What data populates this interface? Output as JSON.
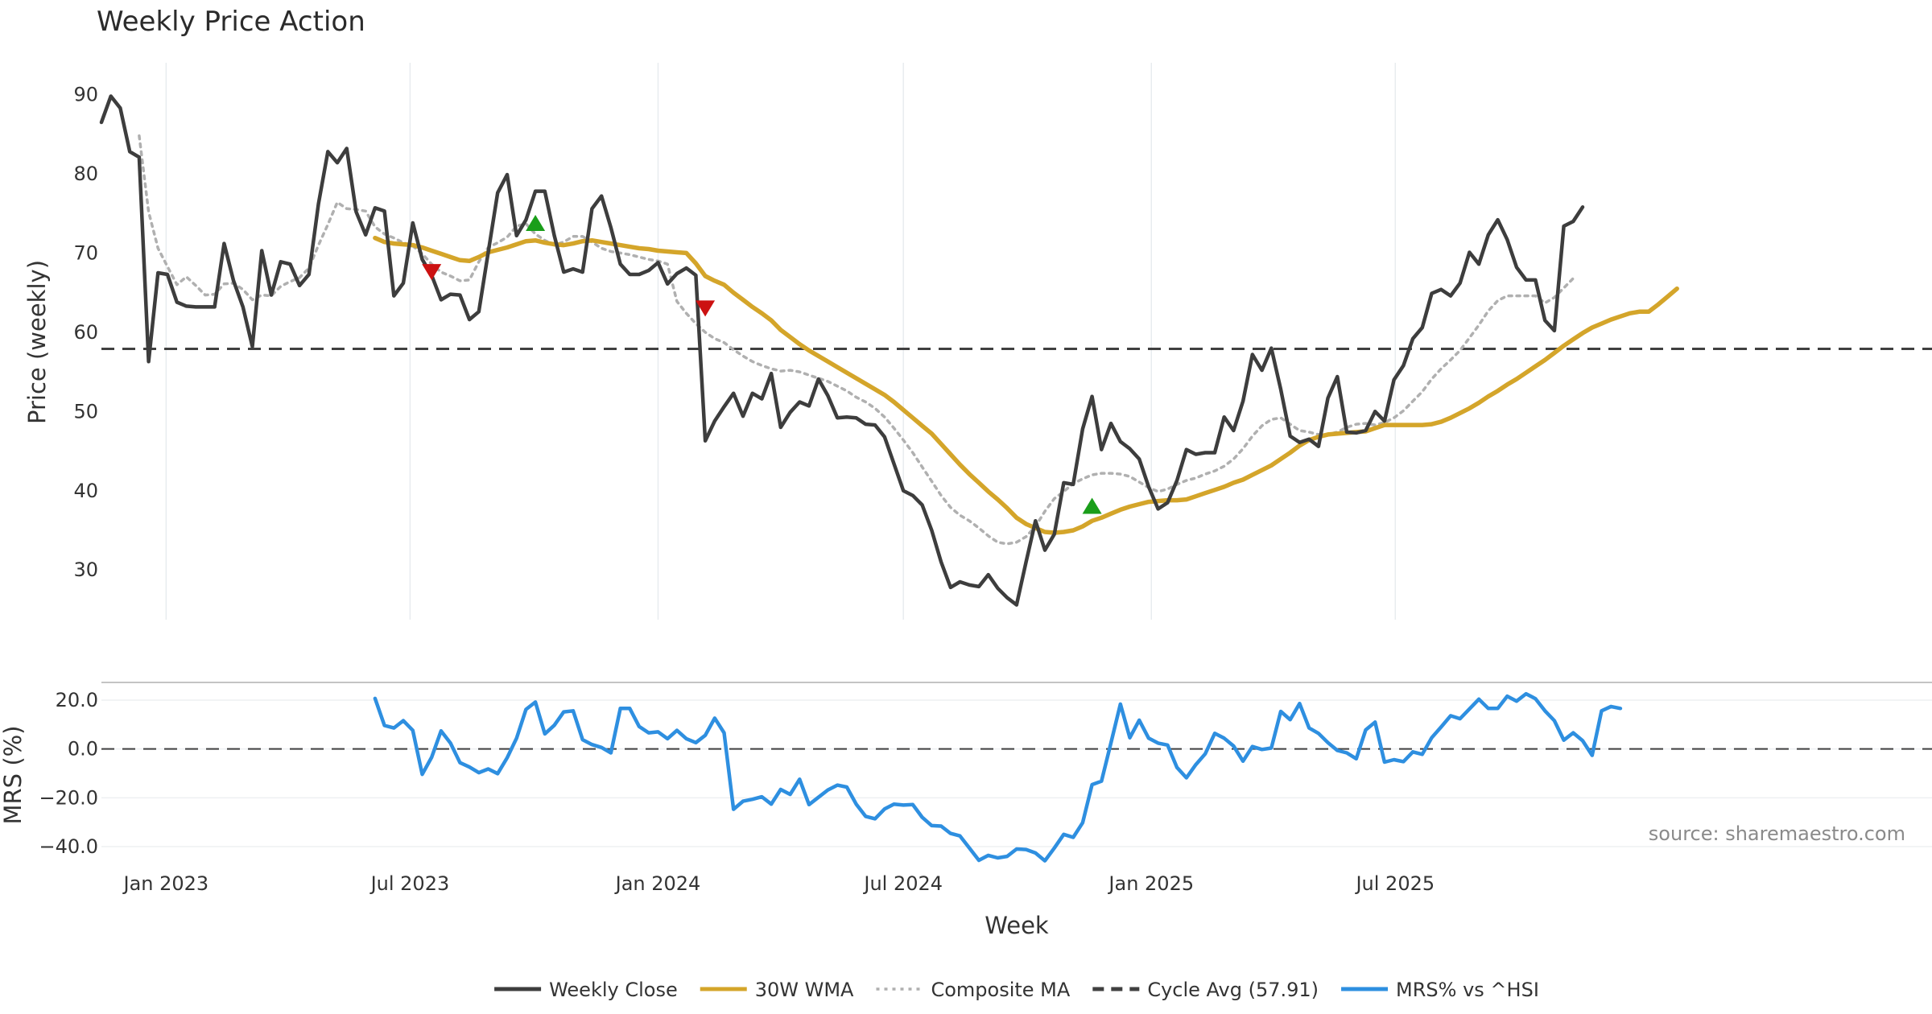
{
  "chart_data": {
    "type": "line",
    "title": "Weekly Price Action",
    "xlabel": "Week",
    "x_ticks": [
      "Jan 2023",
      "Jul 2023",
      "Jan 2024",
      "Jul 2024",
      "Jan 2025",
      "Jul 2025"
    ],
    "x_start": "2022-11-14",
    "x_end": "2025-10-20",
    "price_panel": {
      "ylabel": "Price (weekly)",
      "ylim": [
        22,
        93
      ],
      "yticks": [
        30,
        40,
        50,
        60,
        70,
        80,
        90
      ],
      "cycle_avg": 57.91,
      "series": [
        {
          "name": "Weekly Close",
          "color": "#3d3d3d",
          "style": "solid",
          "start_index": 0,
          "values": [
            86.5,
            89.8,
            88.3,
            82.8,
            82.1,
            56.3,
            67.5,
            67.3,
            63.8,
            63.3,
            63.2,
            63.2,
            63.2,
            71.2,
            66.5,
            63.2,
            58.2,
            70.3,
            64.7,
            68.9,
            68.6,
            65.9,
            67.3,
            76.2,
            82.8,
            81.4,
            83.2,
            75.2,
            72.3,
            75.7,
            75.3,
            64.6,
            66.2,
            73.8,
            69.2,
            67.2,
            64.1,
            64.8,
            64.7,
            61.6,
            62.6,
            70.1,
            77.6,
            79.9,
            72.2,
            74.2,
            77.8,
            77.8,
            72.2,
            67.6,
            68.0,
            67.6,
            75.6,
            77.2,
            73.2,
            68.6,
            67.3,
            67.3,
            67.8,
            68.8,
            66.1,
            67.4,
            68.1,
            67.2,
            46.3,
            48.8,
            50.6,
            52.3,
            49.4,
            52.3,
            51.6,
            54.8,
            48.0,
            49.9,
            51.2,
            50.7,
            54.1,
            52.0,
            49.2,
            49.3,
            49.2,
            48.4,
            48.3,
            46.8,
            43.4,
            40.0,
            39.4,
            38.2,
            35.0,
            31.0,
            27.8,
            28.5,
            28.1,
            27.9,
            29.4,
            27.7,
            26.5,
            25.6,
            31.0,
            36.2,
            32.5,
            34.5,
            41.0,
            40.8,
            47.8,
            51.9,
            45.2,
            48.5,
            46.2,
            45.3,
            44.0,
            40.5,
            37.7,
            38.5,
            41.3,
            45.2,
            44.6,
            44.8,
            44.8,
            49.3,
            47.6,
            51.3,
            57.2,
            55.2,
            58.0,
            52.8,
            46.9,
            46.1,
            46.5,
            45.6,
            51.7,
            54.4,
            47.4,
            47.3,
            47.6,
            50.0,
            48.8,
            54.0,
            55.8,
            59.2,
            60.6,
            64.9,
            65.4,
            64.6,
            66.2,
            70.1,
            68.6,
            72.3,
            74.2,
            71.7,
            68.2,
            66.6,
            66.6,
            61.5,
            60.2,
            73.4,
            74.0,
            75.8
          ]
        },
        {
          "name": "30W WMA",
          "color": "#d4a52a",
          "style": "solid",
          "start_index": 29,
          "values": [
            71.9,
            71.4,
            71.2,
            71.1,
            71.0,
            70.7,
            70.3,
            69.9,
            69.5,
            69.1,
            69.0,
            69.5,
            70.1,
            70.4,
            70.7,
            71.1,
            71.5,
            71.6,
            71.3,
            71.1,
            71.0,
            71.2,
            71.5,
            71.6,
            71.4,
            71.2,
            71.0,
            70.8,
            70.6,
            70.5,
            70.3,
            70.2,
            70.1,
            70.0,
            68.7,
            67.1,
            66.5,
            66.0,
            65.0,
            64.1,
            63.2,
            62.4,
            61.5,
            60.3,
            59.4,
            58.5,
            57.7,
            57.0,
            56.3,
            55.6,
            54.9,
            54.2,
            53.5,
            52.8,
            52.1,
            51.2,
            50.2,
            49.2,
            48.2,
            47.2,
            45.9,
            44.6,
            43.3,
            42.1,
            41.0,
            39.9,
            38.9,
            37.8,
            36.6,
            35.8,
            35.3,
            34.8,
            34.7,
            34.8,
            35.0,
            35.5,
            36.2,
            36.6,
            37.1,
            37.6,
            38.0,
            38.3,
            38.6,
            38.7,
            38.8,
            38.8,
            38.9,
            39.3,
            39.7,
            40.1,
            40.5,
            41.0,
            41.4,
            42.0,
            42.6,
            43.2,
            44.0,
            44.8,
            45.7,
            46.4,
            46.8,
            47.1,
            47.2,
            47.3,
            47.4,
            47.5,
            47.9,
            48.3,
            48.3,
            48.3,
            48.3,
            48.3,
            48.4,
            48.7,
            49.2,
            49.8,
            50.4,
            51.1,
            51.9,
            52.6,
            53.4,
            54.1,
            54.9,
            55.7,
            56.5,
            57.4,
            58.3,
            59.1,
            59.9,
            60.6,
            61.1,
            61.6,
            62.0,
            62.4,
            62.6,
            62.6,
            63.5,
            64.5,
            65.5
          ]
        },
        {
          "name": "Composite MA",
          "color": "#b0b0b0",
          "style": "dotted",
          "start_index": 4,
          "values": [
            84.8,
            75.2,
            70.6,
            68.3,
            66.0,
            67.0,
            65.9,
            64.7,
            64.8,
            66.1,
            66.2,
            65.4,
            64.1,
            64.7,
            64.6,
            65.8,
            66.4,
            66.9,
            68.1,
            71.0,
            73.6,
            76.4,
            75.6,
            75.5,
            75.3,
            73.3,
            72.4,
            71.9,
            71.3,
            70.9,
            69.9,
            68.6,
            67.6,
            67.1,
            66.5,
            66.6,
            68.9,
            70.7,
            71.3,
            72.0,
            73.4,
            73.7,
            72.4,
            71.6,
            71.0,
            71.4,
            72.1,
            72.1,
            71.4,
            70.6,
            70.2,
            70.0,
            69.8,
            69.5,
            69.2,
            69.0,
            68.6,
            63.9,
            62.4,
            61.1,
            60.0,
            59.2,
            58.7,
            57.8,
            57.0,
            56.3,
            55.8,
            55.4,
            55.1,
            55.2,
            55.0,
            54.6,
            54.2,
            53.8,
            53.2,
            52.6,
            51.8,
            51.2,
            50.4,
            49.3,
            47.9,
            46.4,
            44.8,
            43.0,
            41.2,
            39.4,
            37.9,
            36.9,
            36.2,
            35.3,
            34.3,
            33.5,
            33.3,
            33.5,
            34.2,
            35.5,
            37.4,
            39.0,
            39.9,
            40.9,
            41.5,
            42.0,
            42.2,
            42.2,
            42.1,
            41.8,
            41.1,
            40.4,
            39.9,
            40.2,
            40.8,
            41.3,
            41.6,
            42.1,
            42.5,
            43.1,
            44.0,
            45.3,
            46.9,
            48.2,
            49.0,
            49.2,
            48.4,
            47.6,
            47.4,
            47.1,
            47.1,
            47.4,
            48.0,
            48.4,
            48.5,
            48.3,
            48.6,
            49.2,
            50.1,
            51.3,
            52.5,
            54.1,
            55.4,
            56.5,
            57.7,
            59.3,
            60.9,
            62.7,
            64.0,
            64.6,
            64.6,
            64.6,
            64.6,
            63.7,
            64.4,
            65.6,
            66.8
          ]
        },
        {
          "name": "Cycle Avg (57.91)",
          "color": "#404040",
          "style": "dashed",
          "constant": 57.91
        }
      ],
      "signals": [
        {
          "type": "sell",
          "index": 35,
          "value": 67.7,
          "color": "#cc1111"
        },
        {
          "type": "buy",
          "index": 46,
          "value": 73.7,
          "color": "#1a9e1a"
        },
        {
          "type": "sell",
          "index": 64,
          "value": 63.1,
          "color": "#cc1111"
        },
        {
          "type": "buy",
          "index": 105,
          "value": 38.0,
          "color": "#1a9e1a"
        }
      ]
    },
    "mrs_panel": {
      "ylabel": "MRS (%)",
      "ylim": [
        -46,
        25
      ],
      "yticks": [
        20.0,
        0.0,
        -20.0,
        -40.0
      ],
      "ytick_labels": [
        "20.0",
        "0.0",
        "−20.0",
        "−40.0"
      ],
      "zero_line": 0,
      "series": [
        {
          "name": "MRS% vs ^HSI",
          "color": "#2e8fe0",
          "style": "solid",
          "start_index": 29,
          "values": [
            20.7,
            9.6,
            8.6,
            11.6,
            7.6,
            -10.4,
            -3.4,
            7.4,
            2.4,
            -5.6,
            -7.4,
            -9.7,
            -8.2,
            -10.1,
            -3.6,
            4.4,
            16.2,
            19.2,
            6.2,
            9.7,
            15.2,
            15.6,
            3.8,
            1.8,
            0.6,
            -1.6,
            16.6,
            16.6,
            9.2,
            6.6,
            7.0,
            4.2,
            7.6,
            4.2,
            2.6,
            5.6,
            12.6,
            6.6,
            -24.7,
            -21.4,
            -20.6,
            -19.6,
            -22.6,
            -16.6,
            -18.6,
            -12.4,
            -22.8,
            -19.8,
            -16.8,
            -14.8,
            -15.6,
            -22.6,
            -27.6,
            -28.6,
            -24.6,
            -22.6,
            -23.0,
            -22.8,
            -28.0,
            -31.4,
            -31.6,
            -34.6,
            -35.6,
            -40.6,
            -45.6,
            -43.6,
            -44.6,
            -44.0,
            -41.0,
            -41.2,
            -42.6,
            -45.8,
            -40.6,
            -35.0,
            -36.2,
            -30.2,
            -14.6,
            -13.2,
            2.4,
            18.4,
            4.6,
            11.8,
            4.4,
            2.4,
            1.6,
            -7.6,
            -11.8,
            -6.4,
            -2.0,
            6.4,
            4.4,
            1.2,
            -5.0,
            1.0,
            -0.2,
            0.4,
            15.4,
            12.0,
            18.6,
            8.6,
            6.4,
            2.6,
            -0.6,
            -1.6,
            -4.0,
            7.8,
            11.0,
            -5.4,
            -4.4,
            -5.2,
            -1.2,
            -2.2,
            4.6,
            9.0,
            13.6,
            12.4,
            16.4,
            20.4,
            16.6,
            16.6,
            21.6,
            19.6,
            22.6,
            20.6,
            15.6,
            11.6,
            3.6,
            6.6,
            3.4,
            -2.6,
            15.6,
            17.4,
            16.6
          ]
        }
      ]
    },
    "source_note": "source: sharemaestro.com",
    "legend": [
      {
        "label": "Weekly Close",
        "color": "#3d3d3d",
        "style": "solid"
      },
      {
        "label": "30W WMA",
        "color": "#d4a52a",
        "style": "solid"
      },
      {
        "label": "Composite MA",
        "color": "#b0b0b0",
        "style": "dotted"
      },
      {
        "label": "Cycle Avg (57.91)",
        "color": "#404040",
        "style": "dashed"
      },
      {
        "label": "MRS% vs ^HSI",
        "color": "#2e8fe0",
        "style": "solid"
      }
    ]
  }
}
